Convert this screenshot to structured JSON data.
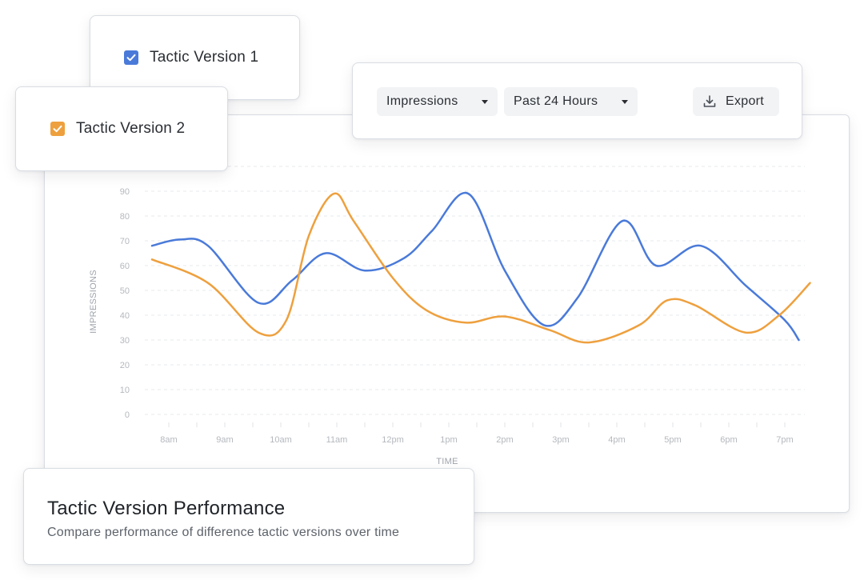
{
  "legend": {
    "items": [
      {
        "label": "Tactic Version 1",
        "color": "#4a7ad9",
        "checked": true
      },
      {
        "label": "Tactic Version 2",
        "color": "#eea03e",
        "checked": true
      }
    ]
  },
  "toolbar": {
    "metric_label": "Impressions",
    "period_label": "Past 24 Hours",
    "export_label": "Export"
  },
  "header": {
    "title": "Tactic Version Performance",
    "subtitle": "Compare performance of difference tactic versions over time"
  },
  "chart_data": {
    "type": "line",
    "ylabel": "IMPRESSIONS",
    "xlabel": "TIME",
    "ylim": [
      0,
      90
    ],
    "yticks": [
      0,
      10,
      20,
      30,
      40,
      50,
      60,
      70,
      80,
      90
    ],
    "categories": [
      "8am",
      "9am",
      "10am",
      "11am",
      "12pm",
      "1pm",
      "2pm",
      "3pm",
      "4pm",
      "5pm",
      "6pm",
      "7pm"
    ],
    "grid": true,
    "series": [
      {
        "name": "Tactic Version 1",
        "color": "#4a7ad9",
        "x": [
          7.7,
          8.2,
          8.7,
          9.6,
          10.2,
          10.8,
          11.5,
          12.2,
          12.7,
          13.35,
          14.0,
          14.7,
          15.3,
          16.1,
          16.7,
          17.5,
          18.3,
          19.0,
          19.25
        ],
        "y": [
          68,
          70.5,
          68,
          45,
          54,
          65,
          58,
          63,
          74,
          89,
          58,
          36,
          47,
          78,
          60,
          68,
          52,
          38,
          30
        ]
      },
      {
        "name": "Tactic Version 2",
        "color": "#eea03e",
        "x": [
          7.7,
          8.7,
          9.6,
          10.1,
          10.5,
          10.95,
          11.3,
          12.0,
          12.6,
          13.3,
          14.0,
          14.8,
          15.5,
          16.4,
          16.9,
          17.4,
          18.3,
          18.9,
          19.45
        ],
        "y": [
          62.5,
          53,
          33,
          38,
          72,
          89,
          78,
          55,
          42,
          37,
          39.5,
          34,
          29,
          36,
          46,
          44,
          33,
          40,
          53
        ]
      }
    ]
  }
}
